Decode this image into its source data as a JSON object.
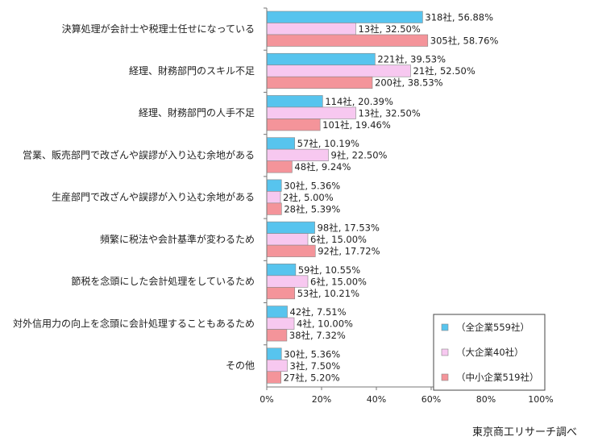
{
  "chart_data": {
    "type": "bar",
    "orientation": "horizontal",
    "categories": [
      "決算処理が会計士や税理士任せになっている",
      "経理、財務部門のスキル不足",
      "経理、財務部門の人手不足",
      "営業、販売部門で改ざんや誤謬が入り込む余地がある",
      "生産部門で改ざんや誤謬が入り込む余地がある",
      "頻繁に税法や会計基準が変わるため",
      "節税を念頭にした会計処理をしているため",
      "対外信用力の向上を念頭に会計処理することもあるため",
      "その他"
    ],
    "series": [
      {
        "name": "（全企業559社）",
        "color": "#57c4ee",
        "values": [
          56.88,
          39.53,
          20.39,
          10.19,
          5.36,
          17.53,
          10.55,
          7.51,
          5.36
        ],
        "labels": [
          "318社, 56.88%",
          "221社, 39.53%",
          "114社, 20.39%",
          "57社, 10.19%",
          "30社, 5.36%",
          "98社, 17.53%",
          "59社, 10.55%",
          "42社, 7.51%",
          "30社, 5.36%"
        ]
      },
      {
        "name": "（大企業40社）",
        "color": "#f7c8f0",
        "values": [
          32.5,
          52.5,
          32.5,
          22.5,
          5.0,
          15.0,
          15.0,
          10.0,
          7.5
        ],
        "labels": [
          "13社, 32.50%",
          "21社, 52.50%",
          "13社, 32.50%",
          "9社, 22.50%",
          "2社, 5.00%",
          "6社, 15.00%",
          "6社, 15.00%",
          "4社, 10.00%",
          "3社, 7.50%"
        ]
      },
      {
        "name": "（中小企業519社）",
        "color": "#f4949a",
        "values": [
          58.76,
          38.53,
          19.46,
          9.24,
          5.39,
          17.72,
          10.21,
          7.32,
          5.2
        ],
        "labels": [
          "305社, 58.76%",
          "200社, 38.53%",
          "101社, 19.46%",
          "48社, 9.24%",
          "28社, 5.39%",
          "92社, 17.72%",
          "53社, 10.21%",
          "38社, 7.32%",
          "27社, 5.20%"
        ]
      }
    ],
    "xlim": [
      0,
      100
    ],
    "xticks": [
      "0%",
      "20%",
      "40%",
      "60%",
      "80%",
      "100%"
    ],
    "grid": false,
    "legend_position": "bottom-right"
  },
  "source": "東京商工リサーチ調べ"
}
